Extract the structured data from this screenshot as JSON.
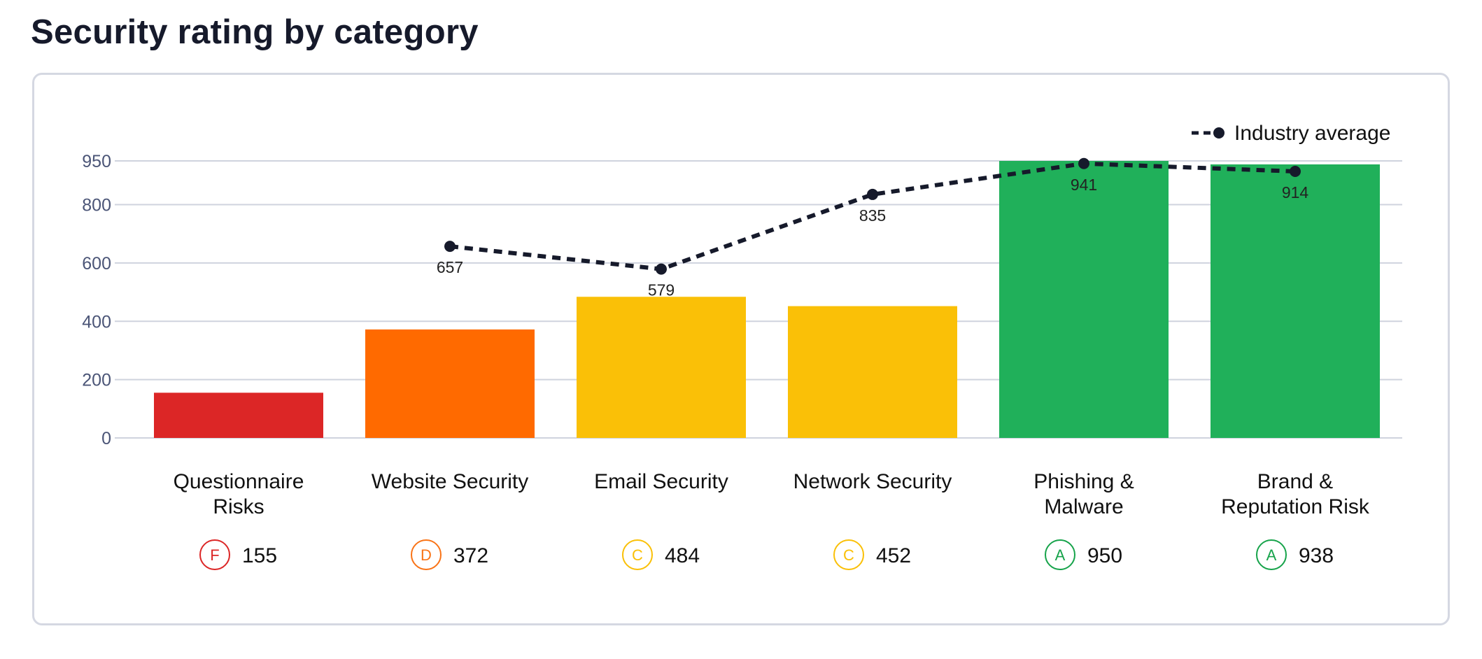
{
  "page": {
    "title": "Security rating by category"
  },
  "chart_data": {
    "type": "bar",
    "categories": [
      [
        "Questionnaire",
        "Risks"
      ],
      [
        "Website Security"
      ],
      [
        "Email Security"
      ],
      [
        "Network Security"
      ],
      [
        "Phishing &",
        "Malware"
      ],
      [
        "Brand &",
        "Reputation Risk"
      ]
    ],
    "series": [
      {
        "values": [
          155,
          372,
          484,
          452,
          950,
          938
        ],
        "colors": [
          "#dc2626",
          "#ff6a00",
          "#fac007",
          "#fac007",
          "#20b05a",
          "#20b05a"
        ]
      },
      {
        "name": "Industry average",
        "type": "line",
        "style": "dashed",
        "color": "#161a2b",
        "values": [
          null,
          657,
          579,
          835,
          941,
          914
        ]
      }
    ],
    "grades": [
      {
        "letter": "F",
        "color": "#dc2626"
      },
      {
        "letter": "D",
        "color": "#f97316"
      },
      {
        "letter": "C",
        "color": "#fac007"
      },
      {
        "letter": "C",
        "color": "#fac007"
      },
      {
        "letter": "A",
        "color": "#16a34a"
      },
      {
        "letter": "A",
        "color": "#16a34a"
      }
    ],
    "scores": [
      "155",
      "372",
      "484",
      "452",
      "950",
      "938"
    ],
    "yticks": [
      0,
      200,
      400,
      600,
      800,
      950
    ],
    "ylim": [
      0,
      950
    ],
    "grid": true,
    "legend": {
      "position": "top-right"
    },
    "colors": {
      "grid": "#cfd3de",
      "tick_text": "#4b5577"
    }
  }
}
